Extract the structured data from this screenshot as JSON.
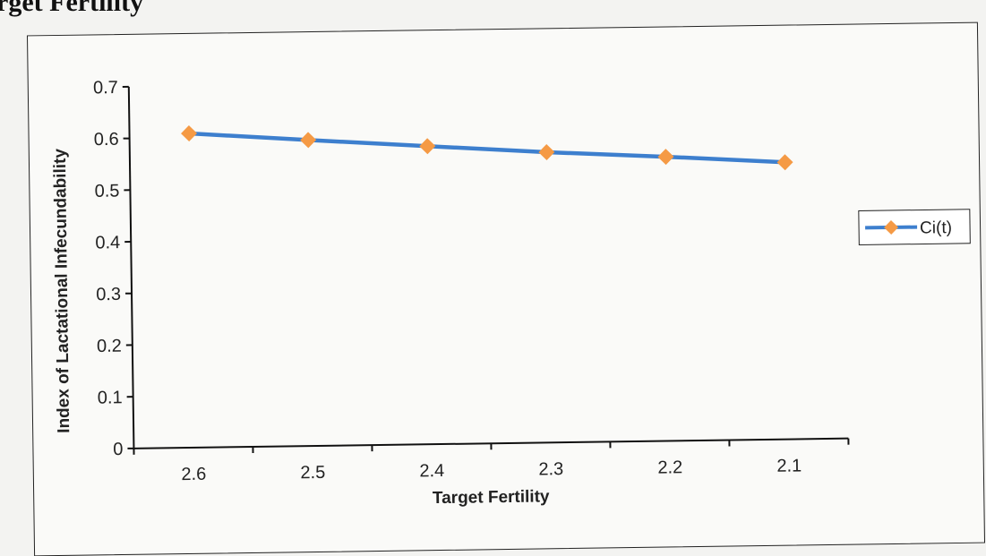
{
  "heading": "rget Fertility",
  "chart_data": {
    "type": "line",
    "xlabel": "Target Fertility",
    "ylabel": "Index of Lactational Infecundability",
    "categories": [
      "2.6",
      "2.5",
      "2.4",
      "2.3",
      "2.2",
      "2.1"
    ],
    "series": [
      {
        "name": "Ci(t)",
        "values": [
          0.608,
          0.592,
          0.577,
          0.562,
          0.55,
          0.536
        ],
        "line_color": "#3d7fce",
        "marker_color": "#f59a45",
        "marker": "diamond"
      }
    ],
    "ylim": [
      0,
      0.7
    ],
    "yticks": [
      "0",
      "0.1",
      "0.2",
      "0.3",
      "0.4",
      "0.5",
      "0.6",
      "0.7"
    ],
    "grid": false,
    "legend_position": "right"
  }
}
